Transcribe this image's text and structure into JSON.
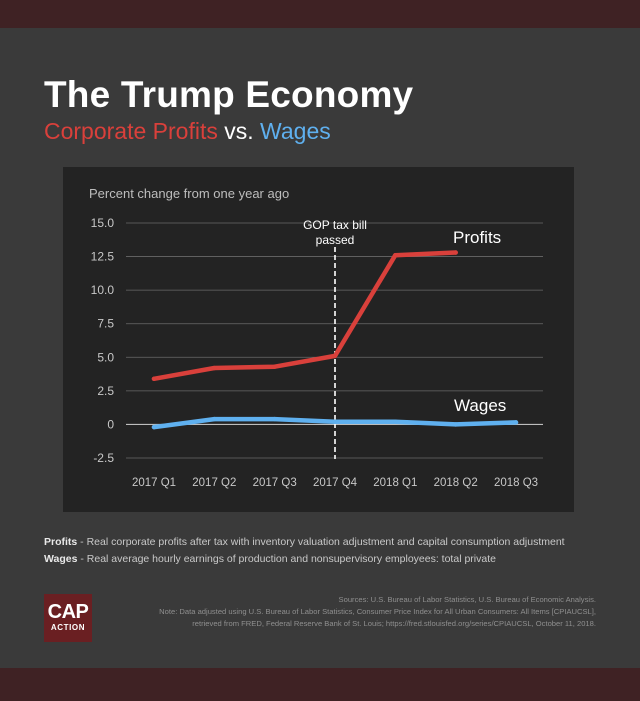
{
  "header": {
    "title": "The Trump Economy",
    "subtitle_part1": "Corporate Profits",
    "subtitle_vs": " vs. ",
    "subtitle_part2": "Wages"
  },
  "colors": {
    "profits": "#d9403b",
    "wages": "#5fb0ef",
    "panel": "#232323",
    "background": "#3a3a3a",
    "band": "#3f2224"
  },
  "chart_data": {
    "type": "line",
    "axis_caption": "Percent change from one year ago",
    "categories": [
      "2017 Q1",
      "2017 Q2",
      "2017 Q3",
      "2017 Q4",
      "2018 Q1",
      "2018 Q2",
      "2018 Q3"
    ],
    "yticks": [
      "15.0",
      "12.5",
      "10.0",
      "7.5",
      "5.0",
      "2.5",
      "0",
      "-2.5"
    ],
    "ylim": [
      -2.5,
      15.0
    ],
    "series": [
      {
        "name": "Profits",
        "values": [
          3.4,
          4.2,
          4.3,
          5.1,
          12.6,
          12.8,
          null
        ]
      },
      {
        "name": "Wages",
        "values": [
          -0.2,
          0.4,
          0.4,
          0.2,
          0.2,
          0.0,
          0.15
        ]
      }
    ],
    "annotation": {
      "category": "2017 Q4",
      "line1": "GOP tax bill",
      "line2": "passed"
    }
  },
  "notes": {
    "profits_label": "Profits",
    "profits_text": " - Real corporate profits after tax with inventory valuation adjustment and capital consumption adjustment",
    "wages_label": "Wages",
    "wages_text": " - Real average hourly earnings of production and nonsupervisory employees: total private"
  },
  "sources": {
    "line1": "Sources: U.S. Bureau of Labor Statistics, U.S. Bureau of Economic Analysis.",
    "line2": "Note: Data adjusted using  U.S. Bureau of Labor Statistics, Consumer Price Index for All Urban Consumers: All Items [CPIAUCSL],",
    "line3": "retrieved from FRED, Federal Reserve Bank of St. Louis; https://fred.stlouisfed.org/series/CPIAUCSL, October 11, 2018."
  },
  "logo": {
    "top": "CAP",
    "bottom": "ACTION"
  }
}
